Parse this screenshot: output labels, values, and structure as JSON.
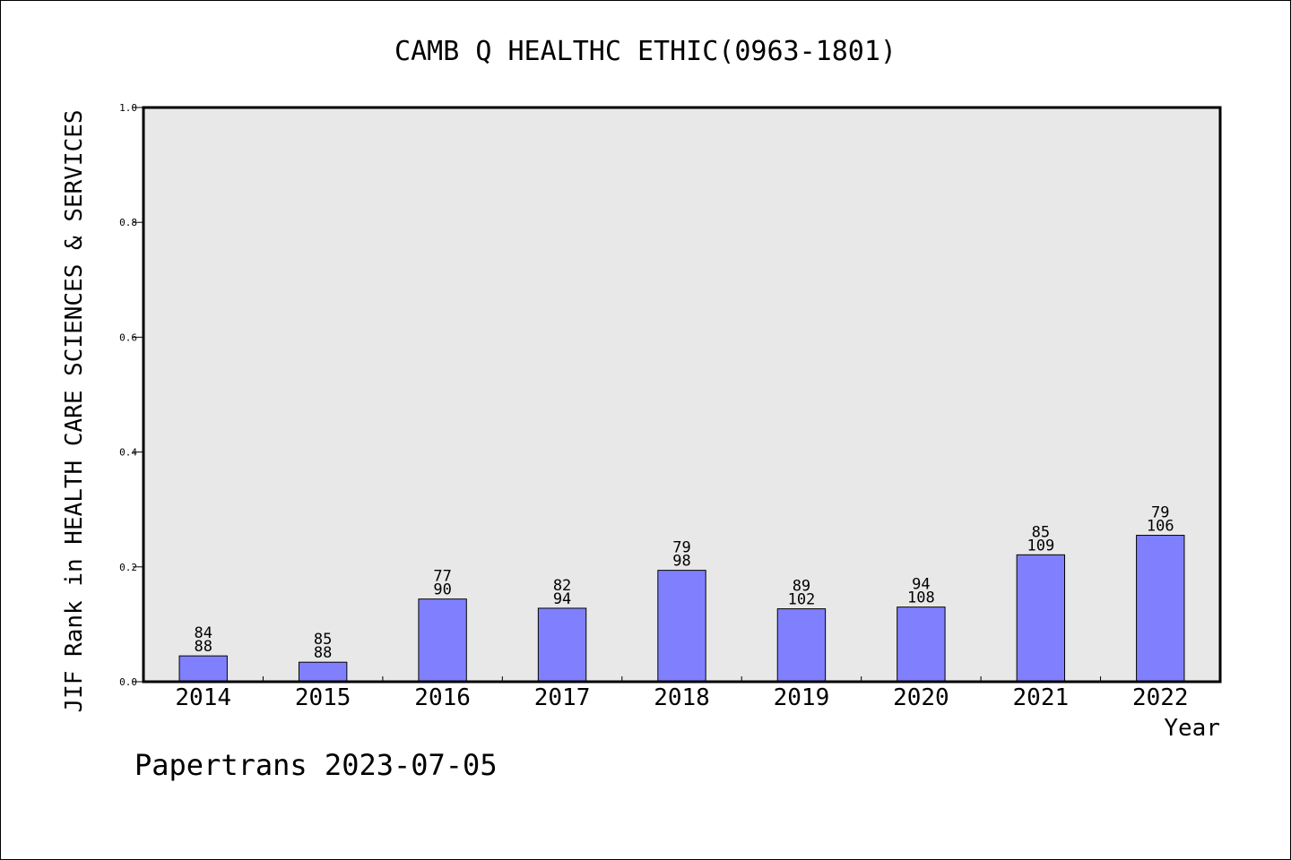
{
  "chart_data": {
    "type": "bar",
    "title": "CAMB Q HEALTHC ETHIC(0963-1801)",
    "xlabel": "Year",
    "ylabel": "JIF Rank in HEALTH CARE SCIENCES & SERVICES",
    "footer": "Papertrans 2023-07-05",
    "categories": [
      "2014",
      "2015",
      "2016",
      "2017",
      "2018",
      "2019",
      "2020",
      "2021",
      "2022"
    ],
    "values": [
      0.045,
      0.034,
      0.144,
      0.128,
      0.194,
      0.127,
      0.13,
      0.221,
      0.255
    ],
    "rank": [
      "84",
      "85",
      "77",
      "82",
      "79",
      "89",
      "94",
      "85",
      "79"
    ],
    "total": [
      "88",
      "88",
      "90",
      "94",
      "98",
      "102",
      "108",
      "109",
      "106"
    ],
    "ylim": [
      0,
      1.0
    ],
    "yticks": [
      "0.0",
      "0.2",
      "0.4",
      "0.6",
      "0.8",
      "1.0"
    ],
    "grid": false,
    "legend": "none",
    "colors": {
      "bar": "#8080ff",
      "plot_background": "#e8e8e8",
      "frame": "#000000"
    }
  }
}
